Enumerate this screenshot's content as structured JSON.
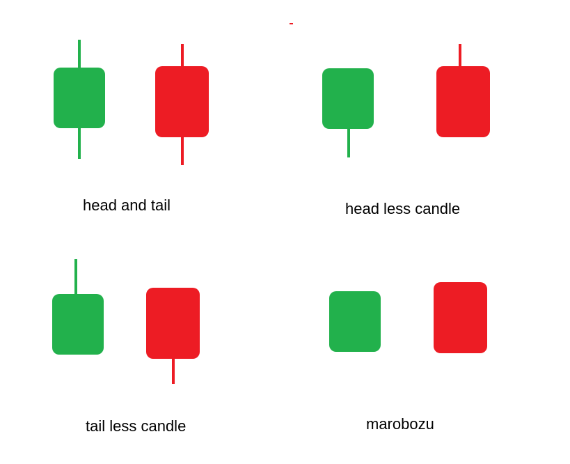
{
  "colors": {
    "bullish": "#22B14C",
    "bearish": "#ED1C24",
    "background": "#FFFFFF",
    "text": "#000000"
  },
  "captions": {
    "head_and_tail": "head and tail",
    "head_less_candle": "head less candle",
    "tail_less_candle": "tail less candle",
    "marobozu": "marobozu"
  },
  "groups": [
    {
      "key": "head_and_tail",
      "candles": [
        {
          "color": "bullish",
          "upper_wick": true,
          "lower_wick": true
        },
        {
          "color": "bearish",
          "upper_wick": true,
          "lower_wick": true
        }
      ]
    },
    {
      "key": "head_less_candle",
      "candles": [
        {
          "color": "bullish",
          "upper_wick": false,
          "lower_wick": true
        },
        {
          "color": "bearish",
          "upper_wick": true,
          "lower_wick": false
        }
      ]
    },
    {
      "key": "tail_less_candle",
      "candles": [
        {
          "color": "bullish",
          "upper_wick": true,
          "lower_wick": false
        },
        {
          "color": "bearish",
          "upper_wick": false,
          "lower_wick": true
        }
      ]
    },
    {
      "key": "marobozu",
      "candles": [
        {
          "color": "bullish",
          "upper_wick": false,
          "lower_wick": false
        },
        {
          "color": "bearish",
          "upper_wick": false,
          "lower_wick": false
        }
      ]
    }
  ]
}
